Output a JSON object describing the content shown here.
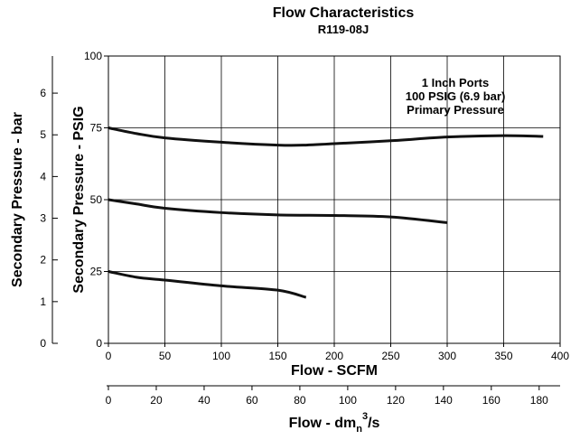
{
  "chart_data": {
    "type": "line",
    "title": "Flow Characteristics",
    "subtitle": "R119-08J",
    "xlabel": "Flow - SCFM",
    "xlabel_secondary": {
      "main": "Flow - dm",
      "sub": "n",
      "sup": "3",
      "tail": "/s"
    },
    "ylabel": "Secondary Pressure - PSIG",
    "ylabel_secondary": "Secondary Pressure - bar",
    "xlim": [
      0,
      400
    ],
    "ylim": [
      0,
      100
    ],
    "x_ticks": [
      "0",
      "50",
      "100",
      "150",
      "200",
      "250",
      "300",
      "350",
      "400"
    ],
    "y_ticks": [
      "0",
      "25",
      "50",
      "75",
      "100"
    ],
    "x2_ticks": [
      "0",
      "20",
      "40",
      "60",
      "80",
      "100",
      "120",
      "140",
      "160",
      "180"
    ],
    "x2_tick_values": [
      0,
      20,
      40,
      60,
      80,
      100,
      120,
      140,
      160,
      180
    ],
    "x2_per_scfm": 0.4719,
    "y2_ticks": [
      "0",
      "1",
      "2",
      "3",
      "4",
      "5",
      "6"
    ],
    "y2_tick_values": [
      0,
      1,
      2,
      3,
      4,
      5,
      6
    ],
    "y2_per_psig": 0.0689,
    "grid": true,
    "annotation": [
      "1 Inch Ports",
      "100 PSIG (6.9 bar)",
      "Primary Pressure"
    ],
    "series": [
      {
        "x": [
          0,
          25,
          50,
          100,
          150,
          175,
          200,
          250,
          300,
          350,
          385
        ],
        "y": [
          75,
          73,
          71.5,
          70,
          69,
          69,
          69.5,
          70.5,
          71.8,
          72.3,
          72
        ]
      },
      {
        "x": [
          0,
          25,
          50,
          100,
          150,
          200,
          250,
          300
        ],
        "y": [
          50,
          48.5,
          47,
          45.5,
          44.7,
          44.5,
          44,
          42
        ]
      },
      {
        "x": [
          0,
          25,
          50,
          100,
          150,
          175
        ],
        "y": [
          25,
          23,
          22,
          20,
          18.5,
          16
        ]
      }
    ]
  }
}
